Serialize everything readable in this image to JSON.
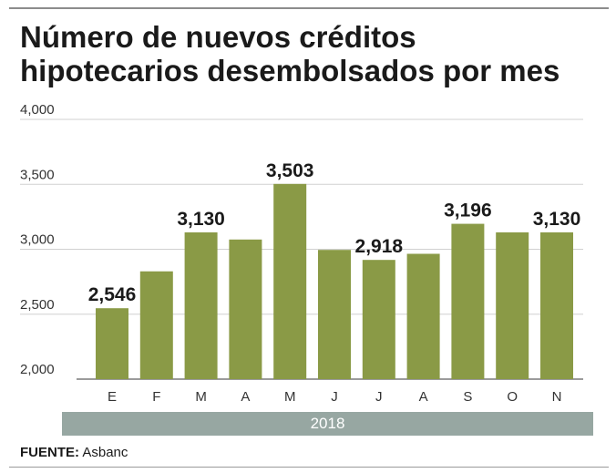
{
  "header": {
    "title_line1": "Número de nuevos créditos",
    "title_line2": "hipotecarios desembolsados por mes"
  },
  "footer": {
    "source_label": "FUENTE:",
    "source_value": "Asbanc"
  },
  "chart_data": {
    "type": "bar",
    "title": "Número de nuevos créditos hipotecarios desembolsados por mes",
    "categories": [
      "E",
      "F",
      "M",
      "A",
      "M",
      "J",
      "J",
      "A",
      "S",
      "O",
      "N"
    ],
    "values": [
      2546,
      2830,
      3130,
      3075,
      3503,
      2995,
      2918,
      2965,
      3196,
      3130,
      3130
    ],
    "data_labels": [
      "2,546",
      null,
      "3,130",
      null,
      "3,503",
      null,
      "2,918",
      null,
      "3,196",
      null,
      "3,130"
    ],
    "group_label": "2018",
    "ylim": [
      2000,
      4000
    ],
    "yticks": [
      2000,
      2500,
      3000,
      3500,
      4000
    ],
    "ytick_labels": [
      "2,000",
      "2,500",
      "3,000",
      "3,500",
      "4,000"
    ],
    "xlabel": "",
    "ylabel": "",
    "grid": true,
    "bar_color": "#8a9a46",
    "grid_color": "#d0d0d0",
    "band_color": "#97a7a2"
  }
}
